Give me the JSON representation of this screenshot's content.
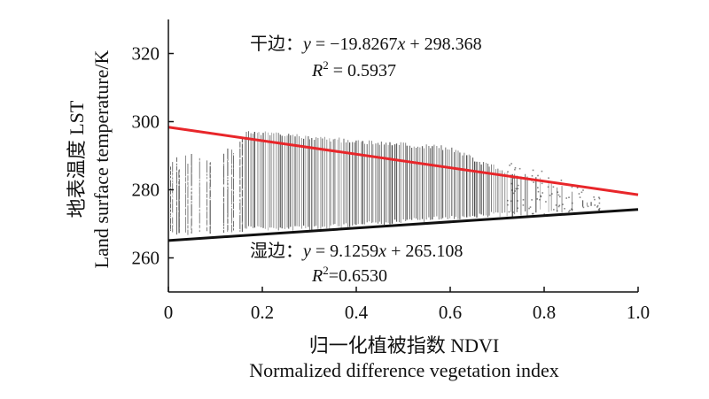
{
  "chart_data": {
    "type": "scatter",
    "title": "",
    "xlabel_cn": "归一化植被指数 NDVI",
    "xlabel_en": "Normalized difference vegetation index",
    "ylabel_cn": "地表温度  LST",
    "ylabel_en": "Land surface temperature/K",
    "xlim": [
      0,
      1.0
    ],
    "ylim": [
      250,
      330
    ],
    "x_ticks": [
      "0",
      "0.2",
      "0.4",
      "0.6",
      "0.8",
      "1.0"
    ],
    "y_ticks": [
      "260",
      "280",
      "300",
      "320"
    ],
    "grid": false,
    "series": [
      {
        "kind": "point-cloud",
        "color": "#222222",
        "envelope": [
          {
            "x": 0.0,
            "lo": 267,
            "hi": 289
          },
          {
            "x": 0.05,
            "lo": 266,
            "hi": 291
          },
          {
            "x": 0.1,
            "lo": 267,
            "hi": 291
          },
          {
            "x": 0.15,
            "lo": 267,
            "hi": 294
          },
          {
            "x": 0.17,
            "lo": 268,
            "hi": 298
          },
          {
            "x": 0.3,
            "lo": 268,
            "hi": 296
          },
          {
            "x": 0.4,
            "lo": 269,
            "hi": 295
          },
          {
            "x": 0.5,
            "lo": 270,
            "hi": 294
          },
          {
            "x": 0.6,
            "lo": 271,
            "hi": 293
          },
          {
            "x": 0.68,
            "lo": 272,
            "hi": 288
          },
          {
            "x": 0.75,
            "lo": 272,
            "hi": 285
          },
          {
            "x": 0.8,
            "lo": 273,
            "hi": 284
          },
          {
            "x": 0.84,
            "lo": 273,
            "hi": 281
          },
          {
            "x": 0.9,
            "lo": 274,
            "hi": 277
          }
        ]
      }
    ],
    "dry_edge": {
      "slope": -19.8267,
      "intercept": 298.368,
      "color": "#e8262a",
      "label_prefix": "干边：",
      "equation_y": "y",
      "equation_mid": " = −19.8267",
      "equation_x": "x",
      "equation_rest": " + 298.368",
      "r2_base": "R",
      "r2_sup": "2",
      "r2_value": " = 0.5937"
    },
    "wet_edge": {
      "slope": 9.1259,
      "intercept": 265.108,
      "color": "#111111",
      "label_prefix": "湿边：",
      "equation_y": "y",
      "equation_mid": " = 9.1259",
      "equation_x": "x",
      "equation_rest": " + 265.108",
      "r2_base": "R",
      "r2_sup": "2",
      "r2_value": "=0.6530"
    }
  }
}
